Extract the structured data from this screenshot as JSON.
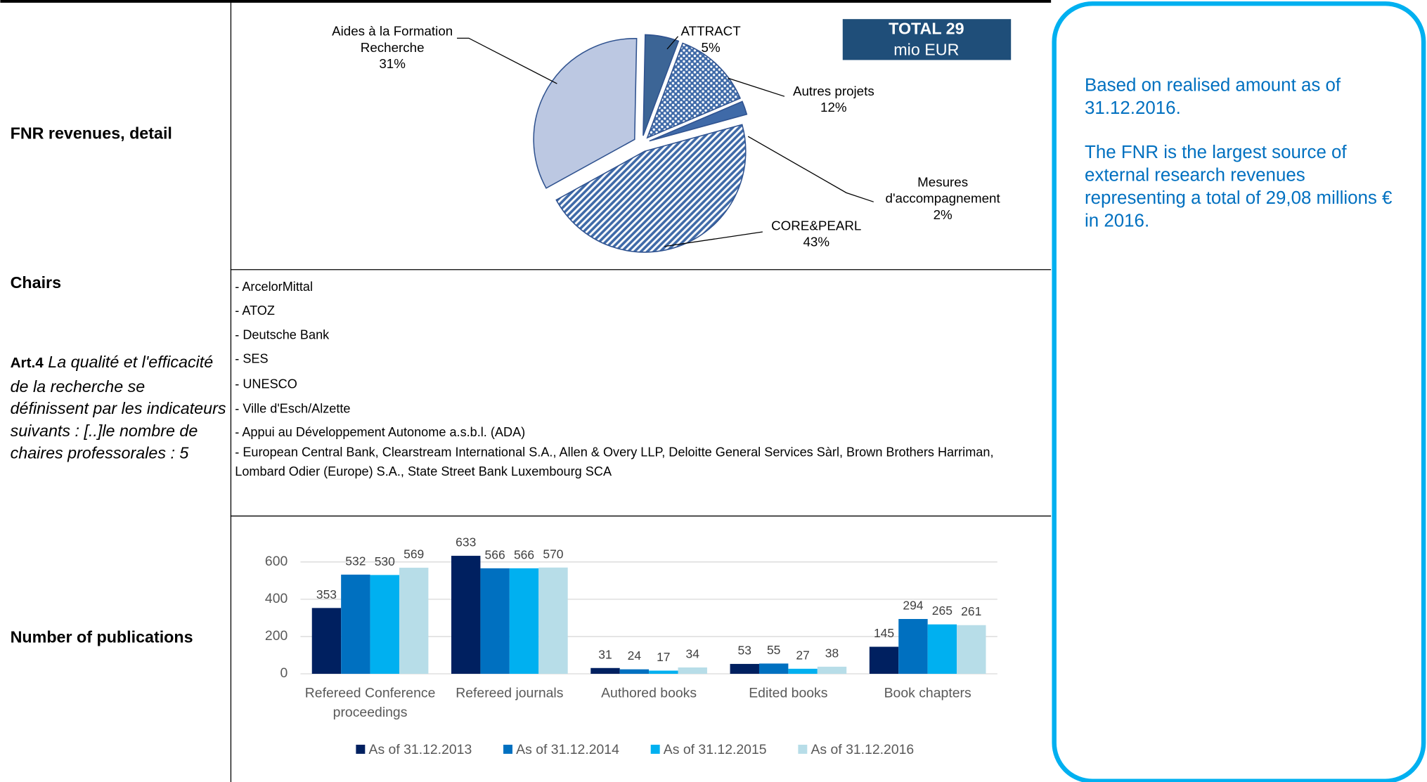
{
  "rows": [
    {
      "label": "FNR revenues, detail"
    },
    {
      "label": "Chairs",
      "article": {
        "ref": "Art.4",
        "text": "La qualité et l'efficacité de la recherche se définissent par les indicateurs suivants : [..]le nombre de chaires professorales : 5"
      },
      "items": [
        "- ArcelorMittal",
        "- ATOZ",
        "- Deutsche Bank",
        "- SES",
        "- UNESCO",
        "- Ville d'Esch/Alzette",
        "-  Appui au Développement Autonome a.s.b.l. (ADA)",
        " - European Central Bank, Clearstream International S.A., Allen & Overy LLP, Deloitte General Services Sàrl, Brown Brothers Harriman, Lombard Odier (Europe) S.A., State Street Bank Luxembourg SCA"
      ]
    },
    {
      "label": "Number of publications"
    }
  ],
  "total": {
    "bold": "TOTAL 29",
    "text": "mio EUR"
  },
  "note": [
    "Based on realised amount as of 31.12.2016.",
    "The FNR is the largest source of external research revenues representing a total of 29,08 millions € in 2016."
  ],
  "chart_data": [
    {
      "type": "pie",
      "categories": [
        "ATTRACT",
        "Autres projets",
        "Mesures\nd'accompagnement",
        "CORE&PEARL",
        "Aides à la Formation\nRecherche"
      ],
      "values": [
        5,
        12,
        2,
        43,
        31
      ],
      "value_labels": [
        "5%",
        "12%",
        "2%",
        "43%",
        "31%"
      ],
      "colors": [
        "#3c6596",
        "#3f6aa8",
        "#3f6aa8",
        "#3f6aa8",
        "#bcc8e2"
      ],
      "patterns": [
        "solid",
        "dots",
        "solid",
        "hatch",
        "solid"
      ]
    },
    {
      "type": "bar",
      "categories": [
        "Refereed Conference proceedings",
        "Refereed journals",
        "Authored books",
        "Edited books",
        "Book chapters"
      ],
      "series": [
        {
          "name": "As of 31.12.2013",
          "color": "#002060",
          "values": [
            353,
            633,
            31,
            53,
            145
          ]
        },
        {
          "name": "As of 31.12.2014",
          "color": "#0070c0",
          "values": [
            532,
            566,
            24,
            55,
            294
          ]
        },
        {
          "name": "As of 31.12.2015",
          "color": "#00b0f0",
          "values": [
            530,
            566,
            17,
            27,
            265
          ]
        },
        {
          "name": "As of 31.12.2016",
          "color": "#b7dde8",
          "values": [
            569,
            570,
            34,
            38,
            261
          ]
        }
      ],
      "ylim": [
        0,
        640
      ],
      "yticks": [
        0,
        200,
        400,
        600
      ],
      "grid": true
    }
  ]
}
